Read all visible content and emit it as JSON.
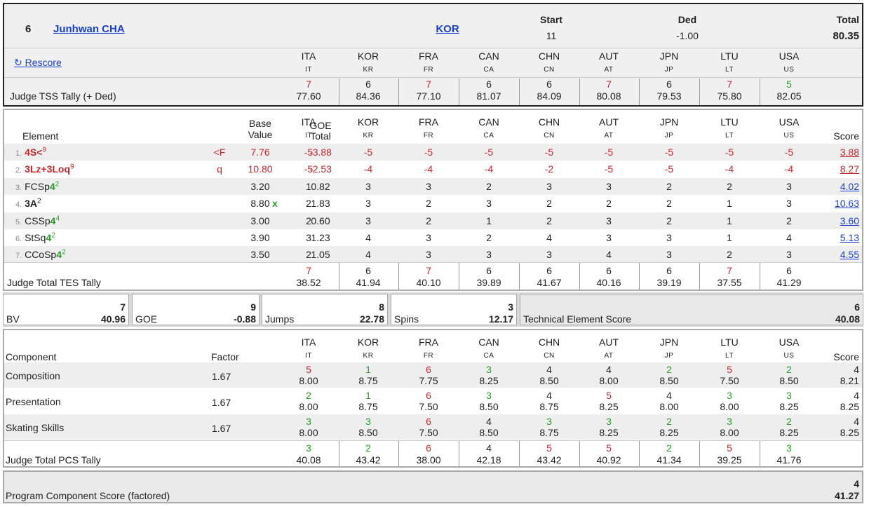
{
  "header": {
    "rank": "6",
    "skater": "Junhwan CHA",
    "nation": "KOR",
    "start_label": "Start",
    "start": "11",
    "ded_label": "Ded",
    "ded": "-1.00",
    "total_label": "Total",
    "total": "80.35",
    "rescore": "Rescore",
    "tss_label": "Judge TSS Tally (+ Ded)"
  },
  "judges": [
    {
      "code": "ITA",
      "abbr": "IT"
    },
    {
      "code": "KOR",
      "abbr": "KR"
    },
    {
      "code": "FRA",
      "abbr": "FR"
    },
    {
      "code": "CAN",
      "abbr": "CA"
    },
    {
      "code": "CHN",
      "abbr": "CN"
    },
    {
      "code": "AUT",
      "abbr": "AT"
    },
    {
      "code": "JPN",
      "abbr": "JP"
    },
    {
      "code": "LTU",
      "abbr": "LT"
    },
    {
      "code": "USA",
      "abbr": "US"
    }
  ],
  "tss": [
    {
      "rank": "7",
      "val": "77.60",
      "c": "red"
    },
    {
      "rank": "6",
      "val": "84.36",
      "c": "blk"
    },
    {
      "rank": "7",
      "val": "77.10",
      "c": "red"
    },
    {
      "rank": "6",
      "val": "81.07",
      "c": "blk"
    },
    {
      "rank": "6",
      "val": "84.09",
      "c": "blk"
    },
    {
      "rank": "7",
      "val": "80.08",
      "c": "red"
    },
    {
      "rank": "6",
      "val": "79.53",
      "c": "blk"
    },
    {
      "rank": "7",
      "val": "75.80",
      "c": "red"
    },
    {
      "rank": "5",
      "val": "82.05",
      "c": "green"
    }
  ],
  "elements_header": {
    "element": "Element",
    "base1": "Base",
    "base2": "Value",
    "goe1": "GOE",
    "goe2": "Total",
    "score": "Score"
  },
  "elements": [
    {
      "num": "1.",
      "name": "4S<",
      "lvl": "9",
      "nc": "red",
      "lc": "red",
      "flag": "<F",
      "bv": "7.76",
      "bvx": "",
      "goe": "-3.88",
      "rc": "red",
      "gc": "red",
      "j": [
        "-5",
        "-5",
        "-5",
        "-5",
        "-5",
        "-5",
        "-5",
        "-5",
        "-5"
      ],
      "score": "3.88",
      "sc": "red"
    },
    {
      "num": "2.",
      "name": "3Lz+3Loq",
      "lvl": "9",
      "nc": "red",
      "lc": "red",
      "flag": "q",
      "bv": "10.80",
      "bvx": "",
      "goe": "-2.53",
      "rc": "red",
      "gc": "red",
      "j": [
        "-5",
        "-4",
        "-4",
        "-4",
        "-2",
        "-5",
        "-5",
        "-4",
        "-4"
      ],
      "score": "8.27",
      "sc": "red"
    },
    {
      "num": "3.",
      "name": "FCSp",
      "lvl_inline": "4",
      "lvl": "2",
      "nc": "blk",
      "lc": "green",
      "flag": "",
      "bv": "3.20",
      "bvx": "",
      "goe": "0.82",
      "rc": "blk",
      "gc": "blk",
      "j": [
        "1",
        "3",
        "3",
        "2",
        "3",
        "3",
        "2",
        "2",
        "3"
      ],
      "score": "4.02",
      "sc": "link"
    },
    {
      "num": "4.",
      "name": "3A",
      "lvl": "2",
      "nc": "blk",
      "lc": "blk",
      "flag": "",
      "bv": "8.80",
      "bvx": "x",
      "goe": "1.83",
      "rc": "blk",
      "gc": "blk",
      "j": [
        "2",
        "3",
        "2",
        "3",
        "2",
        "2",
        "2",
        "1",
        "3"
      ],
      "score": "10.63",
      "sc": "link"
    },
    {
      "num": "5.",
      "name": "CSSp",
      "lvl_inline": "4",
      "lvl": "4",
      "nc": "blk",
      "lc": "green",
      "flag": "",
      "bv": "3.00",
      "bvx": "",
      "goe": "0.60",
      "rc": "blk",
      "gc": "blk",
      "j": [
        "2",
        "3",
        "2",
        "1",
        "2",
        "3",
        "2",
        "1",
        "2"
      ],
      "score": "3.60",
      "sc": "link"
    },
    {
      "num": "6.",
      "name": "StSq",
      "lvl_inline": "4",
      "lvl": "2",
      "nc": "blk",
      "lc": "green",
      "flag": "",
      "bv": "3.90",
      "bvx": "",
      "goe": "1.23",
      "rc": "blk",
      "gc": "blk",
      "j": [
        "3",
        "4",
        "3",
        "2",
        "4",
        "3",
        "3",
        "1",
        "4"
      ],
      "score": "5.13",
      "sc": "link"
    },
    {
      "num": "7.",
      "name": "CCoSp",
      "lvl_inline": "4",
      "lvl": "2",
      "nc": "blk",
      "lc": "green",
      "flag": "",
      "bv": "3.50",
      "bvx": "",
      "goe": "1.05",
      "rc": "blk",
      "gc": "blk",
      "j": [
        "2",
        "4",
        "3",
        "3",
        "3",
        "4",
        "3",
        "2",
        "3"
      ],
      "score": "4.55",
      "sc": "link"
    }
  ],
  "tes_tally": {
    "label": "Judge Total TES Tally",
    "cols": [
      {
        "rank": "7",
        "val": "38.52",
        "c": "red"
      },
      {
        "rank": "6",
        "val": "41.94",
        "c": "blk"
      },
      {
        "rank": "7",
        "val": "40.10",
        "c": "red"
      },
      {
        "rank": "6",
        "val": "39.89",
        "c": "blk"
      },
      {
        "rank": "6",
        "val": "41.67",
        "c": "blk"
      },
      {
        "rank": "6",
        "val": "40.16",
        "c": "blk"
      },
      {
        "rank": "6",
        "val": "39.19",
        "c": "blk"
      },
      {
        "rank": "7",
        "val": "37.55",
        "c": "red"
      },
      {
        "rank": "6",
        "val": "41.29",
        "c": "blk"
      }
    ]
  },
  "summary": {
    "bv": {
      "label": "BV",
      "rank": "7",
      "val": "40.96"
    },
    "goe": {
      "label": "GOE",
      "rank": "9",
      "val": "-0.88"
    },
    "jumps": {
      "label": "Jumps",
      "rank": "8",
      "val": "22.78"
    },
    "spins": {
      "label": "Spins",
      "rank": "3",
      "val": "12.17"
    },
    "tes": {
      "label": "Technical Element Score",
      "rank": "6",
      "val": "40.08"
    }
  },
  "components_header": {
    "component": "Component",
    "factor": "Factor",
    "score": "Score"
  },
  "components": [
    {
      "name": "Composition",
      "factor": "1.67",
      "j": [
        {
          "r": "5",
          "v": "8.00",
          "c": "red"
        },
        {
          "r": "1",
          "v": "8.75",
          "c": "green"
        },
        {
          "r": "6",
          "v": "7.75",
          "c": "red"
        },
        {
          "r": "3",
          "v": "8.25",
          "c": "green"
        },
        {
          "r": "4",
          "v": "8.50",
          "c": "blk"
        },
        {
          "r": "4",
          "v": "8.00",
          "c": "blk"
        },
        {
          "r": "2",
          "v": "8.50",
          "c": "green"
        },
        {
          "r": "5",
          "v": "7.50",
          "c": "red"
        },
        {
          "r": "2",
          "v": "8.50",
          "c": "green"
        }
      ],
      "rank": "4",
      "score": "8.21"
    },
    {
      "name": "Presentation",
      "factor": "1.67",
      "j": [
        {
          "r": "2",
          "v": "8.00",
          "c": "green"
        },
        {
          "r": "1",
          "v": "8.75",
          "c": "green"
        },
        {
          "r": "6",
          "v": "7.50",
          "c": "red"
        },
        {
          "r": "3",
          "v": "8.50",
          "c": "green"
        },
        {
          "r": "4",
          "v": "8.75",
          "c": "blk"
        },
        {
          "r": "5",
          "v": "8.25",
          "c": "red"
        },
        {
          "r": "4",
          "v": "8.00",
          "c": "blk"
        },
        {
          "r": "3",
          "v": "8.00",
          "c": "green"
        },
        {
          "r": "3",
          "v": "8.25",
          "c": "green"
        }
      ],
      "rank": "4",
      "score": "8.25"
    },
    {
      "name": "Skating Skills",
      "factor": "1.67",
      "j": [
        {
          "r": "3",
          "v": "8.00",
          "c": "green"
        },
        {
          "r": "3",
          "v": "8.50",
          "c": "green"
        },
        {
          "r": "6",
          "v": "7.50",
          "c": "red"
        },
        {
          "r": "4",
          "v": "8.50",
          "c": "blk"
        },
        {
          "r": "3",
          "v": "8.75",
          "c": "green"
        },
        {
          "r": "3",
          "v": "8.25",
          "c": "green"
        },
        {
          "r": "2",
          "v": "8.25",
          "c": "green"
        },
        {
          "r": "3",
          "v": "8.00",
          "c": "green"
        },
        {
          "r": "2",
          "v": "8.25",
          "c": "green"
        }
      ],
      "rank": "4",
      "score": "8.25"
    }
  ],
  "pcs_tally": {
    "label": "Judge Total PCS Tally",
    "cols": [
      {
        "rank": "3",
        "val": "40.08",
        "c": "green"
      },
      {
        "rank": "2",
        "val": "43.42",
        "c": "green"
      },
      {
        "rank": "6",
        "val": "38.00",
        "c": "red"
      },
      {
        "rank": "4",
        "val": "42.18",
        "c": "blk"
      },
      {
        "rank": "5",
        "val": "43.42",
        "c": "red"
      },
      {
        "rank": "5",
        "val": "40.92",
        "c": "red"
      },
      {
        "rank": "2",
        "val": "41.34",
        "c": "green"
      },
      {
        "rank": "5",
        "val": "39.25",
        "c": "red"
      },
      {
        "rank": "3",
        "val": "41.76",
        "c": "green"
      }
    ]
  },
  "pcs_total": {
    "label": "Program Component Score (factored)",
    "rank": "4",
    "val": "41.27"
  }
}
